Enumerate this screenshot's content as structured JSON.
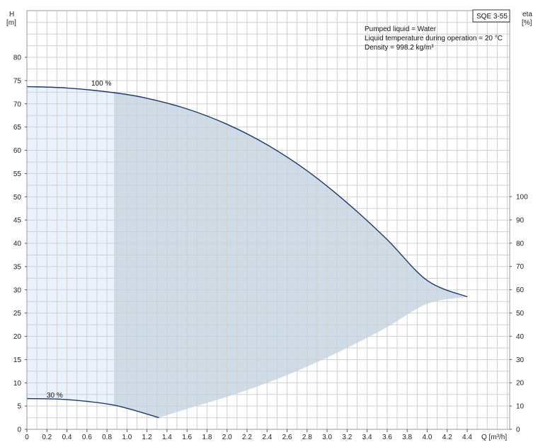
{
  "chart_data": {
    "type": "area",
    "product_label": "SQE 3-55",
    "annotations": [
      "Pumped liquid = Water",
      "Liquid temperature during operation = 20 °C",
      "Density = 998.2 kg/m³"
    ],
    "y_axis_left": {
      "label_top": "H",
      "label_unit": "[m]",
      "range": [
        0,
        80
      ],
      "ticks": [
        0,
        5,
        10,
        15,
        20,
        25,
        30,
        35,
        40,
        45,
        50,
        55,
        60,
        65,
        70,
        75,
        80
      ]
    },
    "y_axis_right": {
      "label_top": "eta",
      "label_unit": "[%]",
      "range": [
        0,
        100
      ],
      "ticks": [
        0,
        10,
        20,
        30,
        40,
        50,
        60,
        70,
        80,
        90,
        100
      ]
    },
    "x_axis": {
      "label": "Q [m³/h]",
      "range": [
        0,
        4.4
      ],
      "ticks": [
        "0",
        "0.2",
        "0.4",
        "0.6",
        "0.8",
        "1.0",
        "1.2",
        "1.4",
        "1.6",
        "1.8",
        "2.0",
        "2.2",
        "2.4",
        "2.6",
        "2.8",
        "3.0",
        "3.2",
        "3.4",
        "3.6",
        "3.8",
        "4.0",
        "4.2",
        "4.4"
      ]
    },
    "grid": true,
    "series": [
      {
        "name": "100 %",
        "x": [
          0,
          0.4,
          0.87,
          1.2,
          1.6,
          2.0,
          2.4,
          2.8,
          3.2,
          3.6,
          4.0,
          4.4
        ],
        "values": [
          73.7,
          73.4,
          72.4,
          71.2,
          68.9,
          65.6,
          61.2,
          55.6,
          48.7,
          40.8,
          32.0,
          28.5
        ]
      },
      {
        "name": "30 %",
        "x": [
          0,
          0.4,
          0.87,
          1.32
        ],
        "values": [
          6.6,
          6.4,
          5.2,
          2.5
        ]
      },
      {
        "name": "",
        "x": [
          1.32,
          1.6,
          2.0,
          2.4,
          2.8,
          3.2,
          3.6,
          4.0,
          4.4
        ],
        "values": [
          2.5,
          4.4,
          7.0,
          10.0,
          13.5,
          17.5,
          22.0,
          27.0,
          28.5
        ]
      }
    ],
    "regions": [
      {
        "role": "light-region",
        "x_range": [
          0,
          0.87
        ],
        "color": "#eaf3fd"
      },
      {
        "role": "operating-range",
        "x_range": [
          0.87,
          4.4
        ],
        "color": "#cfdbe6"
      }
    ],
    "colors": {
      "curve": "#1b3a6b",
      "grid": "#cfcfcf",
      "frame": "#9a9a9a"
    }
  }
}
